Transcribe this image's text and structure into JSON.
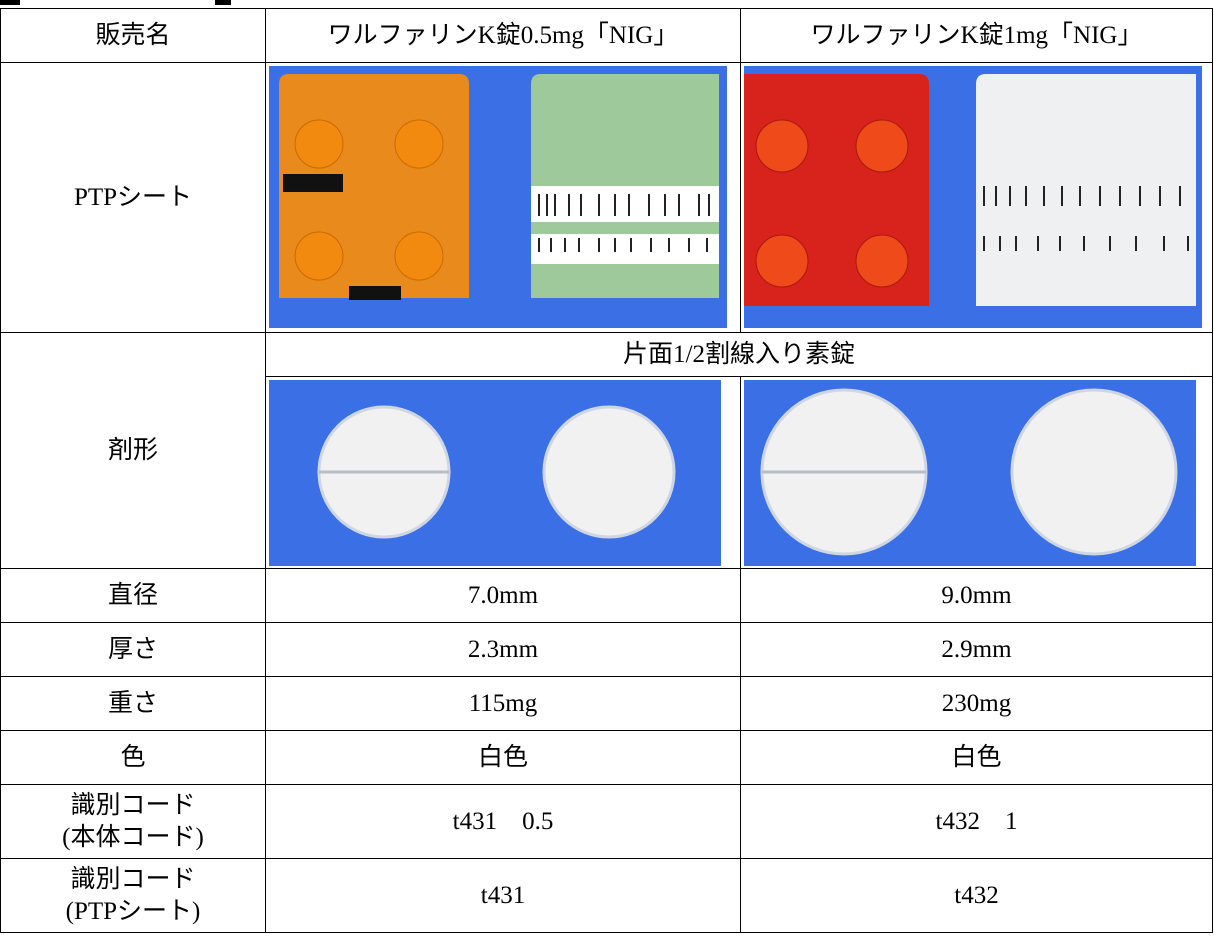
{
  "table": {
    "header": [
      "販売名",
      "ワルファリンK錠0.5mg「NIG」",
      "ワルファリンK錠1mg「NIG」"
    ],
    "ptp_label": "PTPシート",
    "form": {
      "label": "剤形",
      "note": "片面1/2割線入り素錠"
    },
    "rows": [
      {
        "label": [
          "直径"
        ],
        "values": [
          "7.0mm",
          "9.0mm"
        ]
      },
      {
        "label": [
          "厚さ"
        ],
        "values": [
          "2.3mm",
          "2.9mm"
        ]
      },
      {
        "label": [
          "重さ"
        ],
        "values": [
          "115mg",
          "230mg"
        ]
      },
      {
        "label": [
          "色"
        ],
        "values": [
          "白色",
          "白色"
        ]
      },
      {
        "label": [
          "識別コード",
          "(本体コード)"
        ],
        "values": [
          "t431　0.5",
          "t432　1"
        ]
      },
      {
        "label": [
          "識別コード",
          "(PTPシート)"
        ],
        "values": [
          "t431",
          "t432"
        ]
      }
    ]
  }
}
